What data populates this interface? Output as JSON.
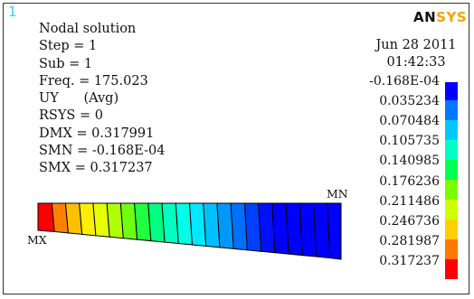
{
  "window_number": "1",
  "logo": {
    "part1": "AN",
    "part2": "SYS"
  },
  "info_lines": [
    "Nodal solution",
    "Step = 1",
    "Sub = 1",
    "Freq. = 175.023",
    "UY      (Avg)",
    "RSYS = 0",
    "DMX = 0.317991",
    "SMN = -0.168E-04",
    "SMX = 0.317237"
  ],
  "date": "Jun 28 2011",
  "time": "01:42:33",
  "legend": {
    "labels": [
      "-0.168E-04",
      "0.035234",
      "0.070484",
      "0.105735",
      "0.140985",
      "0.176236",
      "0.211486",
      "0.246736",
      "0.281987",
      "0.317237"
    ],
    "colors": [
      "#0000ff",
      "#0078ff",
      "#00c8ff",
      "#00ffc8",
      "#00ff50",
      "#78ff00",
      "#d0ff00",
      "#ffd000",
      "#ff7800",
      "#ff0000"
    ]
  },
  "markers": {
    "mn": "MN",
    "mx": "MX"
  },
  "element_colors": [
    "#ff0000",
    "#ff8000",
    "#ffc000",
    "#ffee00",
    "#e6ff00",
    "#b0ff00",
    "#70ff10",
    "#20ff40",
    "#00ff80",
    "#00ffc0",
    "#00ffe8",
    "#00e8ff",
    "#00c0ff",
    "#0098ff",
    "#0070ff",
    "#0040ff",
    "#0010ff",
    "#0000ff",
    "#0000ff",
    "#0000ff",
    "#0000ff",
    "#0000ff"
  ]
}
